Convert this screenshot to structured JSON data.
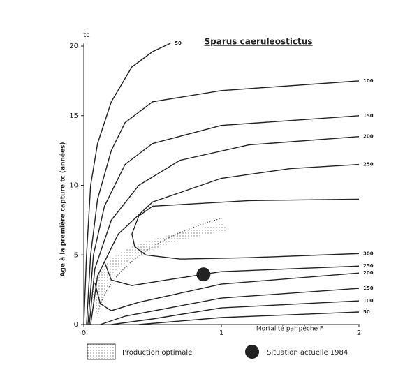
{
  "chart_data": {
    "type": "contour",
    "title": "Sparus caeruleostictus",
    "y_axis_symbol": "tc",
    "y_label": "Age à la première capture tc (années)",
    "x_label": "Mortalité par pêche F",
    "xlim": [
      0,
      2
    ],
    "ylim": [
      0,
      20
    ],
    "xticks": [
      0,
      1,
      2
    ],
    "yticks": [
      0,
      5,
      10,
      15,
      20
    ],
    "color": "#222222",
    "series": [
      {
        "name": "50",
        "x": [
          0.0,
          0.02,
          0.05,
          0.1,
          0.2,
          0.35,
          0.5,
          0.63
        ],
        "y": [
          0,
          5,
          10,
          13,
          16,
          18.5,
          19.6,
          20.2
        ]
      },
      {
        "name": "100",
        "x": [
          0.02,
          0.05,
          0.1,
          0.2,
          0.3,
          0.5,
          1,
          2
        ],
        "y": [
          0,
          5,
          9,
          12.5,
          14.5,
          16,
          16.8,
          17.5
        ]
      },
      {
        "name": "150",
        "x": [
          0.03,
          0.07,
          0.15,
          0.3,
          0.5,
          1,
          2
        ],
        "y": [
          0,
          5,
          8.5,
          11.5,
          13,
          14.3,
          15
        ]
      },
      {
        "name": "200",
        "x": [
          0.04,
          0.08,
          0.2,
          0.4,
          0.7,
          1.2,
          2
        ],
        "y": [
          0,
          4,
          7.5,
          10,
          11.8,
          12.9,
          13.5
        ]
      },
      {
        "name": "250",
        "x": [
          0.05,
          0.1,
          0.25,
          0.5,
          1,
          1.5,
          2
        ],
        "y": [
          0,
          3.5,
          6.5,
          8.8,
          10.5,
          11.2,
          11.5
        ]
      },
      {
        "name": "300",
        "x": [
          2,
          1.2,
          0.5,
          0.4,
          0.35,
          0.37,
          0.45,
          0.7,
          1.2,
          2
        ],
        "y": [
          9.0,
          8.9,
          8.5,
          7.8,
          6.5,
          5.6,
          5,
          4.7,
          4.8,
          5.1
        ]
      },
      {
        "name": "250",
        "x": [
          0.15,
          0.2,
          0.35,
          0.6,
          1,
          2
        ],
        "y": [
          4.5,
          3.2,
          2.8,
          3.2,
          3.8,
          4.2
        ]
      },
      {
        "name": "200",
        "x": [
          0.08,
          0.12,
          0.2,
          0.4,
          1,
          2
        ],
        "y": [
          3,
          1.5,
          1.0,
          1.6,
          2.9,
          3.7
        ]
      },
      {
        "name": "150",
        "x": [
          0.12,
          0.3,
          1,
          2
        ],
        "y": [
          0,
          0.6,
          1.9,
          2.6
        ]
      },
      {
        "name": "100",
        "x": [
          0.2,
          0.5,
          1,
          2
        ],
        "y": [
          0,
          0.4,
          1.2,
          1.7
        ]
      },
      {
        "name": "50",
        "x": [
          0.4,
          1,
          2
        ],
        "y": [
          0,
          0.5,
          0.9
        ]
      }
    ],
    "point": {
      "x": 0.87,
      "y": 3.6
    },
    "legend": [
      "Production optimale",
      "Situation actuelle 1984"
    ]
  }
}
